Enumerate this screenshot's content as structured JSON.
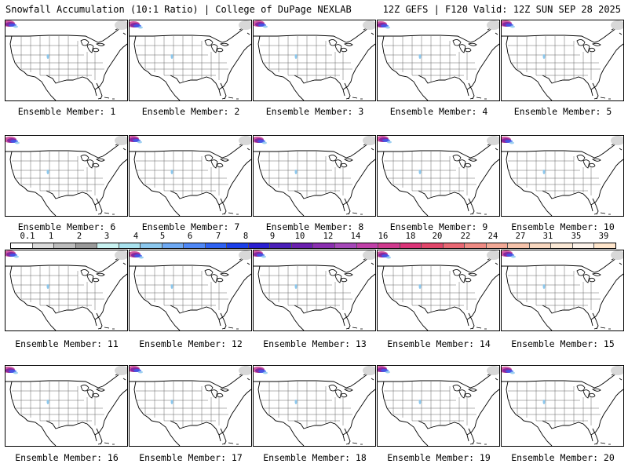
{
  "header": {
    "title_left": "Snowfall Accumulation (10:1 Ratio) | College of DuPage NEXLAB",
    "title_right": "12Z GEFS | F120 Valid: 12Z SUN SEP 28 2025"
  },
  "members": [
    {
      "label": "Ensemble Member: 1"
    },
    {
      "label": "Ensemble Member: 2"
    },
    {
      "label": "Ensemble Member: 3"
    },
    {
      "label": "Ensemble Member: 4"
    },
    {
      "label": "Ensemble Member: 5"
    },
    {
      "label": "Ensemble Member: 6"
    },
    {
      "label": "Ensemble Member: 7"
    },
    {
      "label": "Ensemble Member: 8"
    },
    {
      "label": "Ensemble Member: 9"
    },
    {
      "label": "Ensemble Member: 10"
    },
    {
      "label": "Ensemble Member: 11"
    },
    {
      "label": "Ensemble Member: 12"
    },
    {
      "label": "Ensemble Member: 13"
    },
    {
      "label": "Ensemble Member: 14"
    },
    {
      "label": "Ensemble Member: 15"
    },
    {
      "label": "Ensemble Member: 16"
    },
    {
      "label": "Ensemble Member: 17"
    },
    {
      "label": "Ensemble Member: 18"
    },
    {
      "label": "Ensemble Member: 19"
    },
    {
      "label": "Ensemble Member: 20"
    }
  ],
  "colorbar": {
    "labels": [
      "0.1",
      "1",
      "2",
      "3",
      "4",
      "5",
      "6",
      "7",
      "8",
      "9",
      "10",
      "12",
      "14",
      "16",
      "18",
      "20",
      "22",
      "24",
      "27",
      "31",
      "35",
      "39"
    ],
    "colors": [
      "#ffffff",
      "#e6e6e6",
      "#c8c8c8",
      "#a0a0a0",
      "#7d7d7d",
      "#bfeff0",
      "#9bd7ea",
      "#84bde8",
      "#6b9ef0",
      "#4f7df5",
      "#3a5cf0",
      "#2a3ae8",
      "#1f1fd6",
      "#3c1ab8",
      "#5b1aa8",
      "#7a1f9e",
      "#8f3fb0",
      "#a55bc0",
      "#b86fca",
      "#c04aa8",
      "#c83e90",
      "#d1337c",
      "#da2d6b",
      "#e24a6a",
      "#e9707a",
      "#ef948c",
      "#f3b49f",
      "#f6cdb6",
      "#f9e0cc",
      "#fcefe2"
    ],
    "legend_boxes": [
      "#ffffff",
      "#dcdcdc",
      "#bdbdbd",
      "#9a9a9a",
      "#c9f2f1",
      "#a9e2ee",
      "#8cc8ee",
      "#6ea9f3",
      "#4f88f6",
      "#2f62f2",
      "#1b3fe8",
      "#2a1fd0",
      "#4a1fb8",
      "#6a1fae",
      "#8a2fb0",
      "#a548b8",
      "#c040a8",
      "#cf3a8e",
      "#da3478",
      "#e0466a",
      "#e86874",
      "#ee8b84",
      "#f2a996",
      "#f5c3ab",
      "#f8d8c0",
      "#fbe9d6",
      "#fdf3ea",
      "#ffe6cc"
    ]
  },
  "map_legend": {
    "snow_light": "#8cc8ee",
    "snow_mod": "#3a5cf0",
    "snow_heavy": "#7a1f9e",
    "snow_extreme": "#c83e90"
  }
}
